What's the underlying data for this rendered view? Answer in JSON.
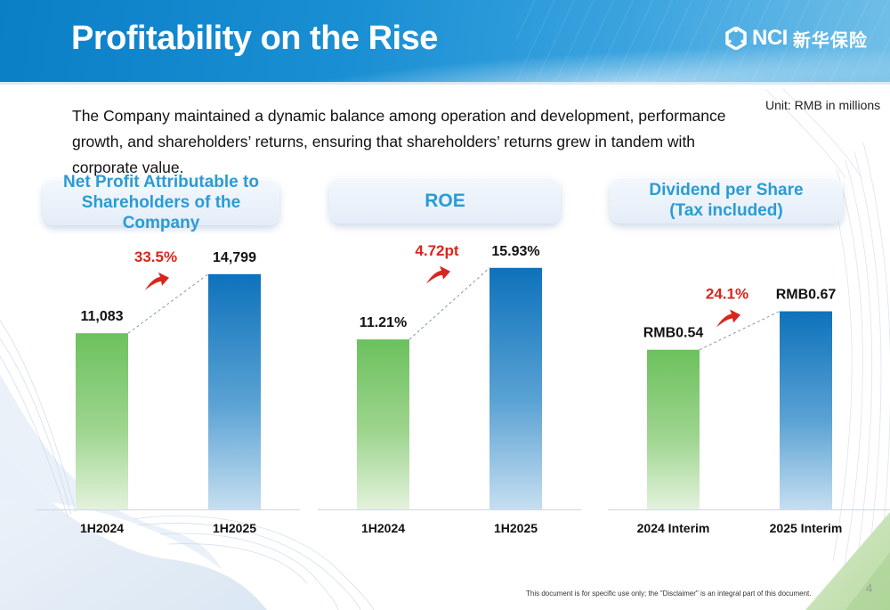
{
  "header": {
    "title": "Profitability on the Rise",
    "logo": {
      "icon": "nci-logo-mark-icon",
      "brand": "NCI",
      "chinese_name": "新华保险"
    }
  },
  "unit_note": "Unit: RMB in millions",
  "description": "The Company maintained a dynamic balance among operation and development, performance growth, and shareholders’ returns, ensuring that shareholders’ returns grew in tandem with corporate value.",
  "colors": {
    "bar_2024": "#6cc15d",
    "bar_2025": "#0e72bb",
    "growth_text": "#d9261c",
    "panel_title": "#2a9bd5"
  },
  "chart_data": [
    {
      "type": "bar",
      "title": "Net Profit Attributable to Shareholders of the Company",
      "title_lines": [
        "Net Profit Attributable to",
        "Shareholders of the Company"
      ],
      "categories": [
        "1H2024",
        "1H2025"
      ],
      "values": [
        11083,
        14799
      ],
      "data_labels": [
        "11,083",
        "14,799"
      ],
      "growth_label": "33.5%",
      "growth_icon": "up-arrow-icon",
      "xlabel": "",
      "ylabel": "",
      "ylim": [
        0,
        18600
      ],
      "unit": "RMB in millions",
      "grid": false
    },
    {
      "type": "bar",
      "title": "ROE",
      "title_lines": [
        "ROE"
      ],
      "categories": [
        "1H2024",
        "1H2025"
      ],
      "values": [
        11.21,
        15.93
      ],
      "data_labels": [
        "11.21%",
        "15.93%"
      ],
      "growth_label": "4.72pt",
      "growth_icon": "up-arrow-icon",
      "xlabel": "",
      "ylabel": "",
      "ylim": [
        0,
        19.5
      ],
      "unit": "%",
      "grid": false
    },
    {
      "type": "bar",
      "title": "Dividend per Share (Tax included)",
      "title_lines": [
        "Dividend per Share",
        "(Tax included)"
      ],
      "categories": [
        "2024 Interim",
        "2025 Interim"
      ],
      "values": [
        0.54,
        0.67
      ],
      "data_labels": [
        "RMB0.54",
        "RMB0.67"
      ],
      "growth_label": "24.1%",
      "growth_icon": "up-arrow-icon",
      "xlabel": "",
      "ylabel": "",
      "ylim": [
        0,
        1.0
      ],
      "unit": "RMB",
      "grid": false
    }
  ],
  "footer": {
    "disclaimer": "This document is for specific use only; the \"Disclaimer\"  is an integral part of this document.",
    "page_number": "4"
  }
}
